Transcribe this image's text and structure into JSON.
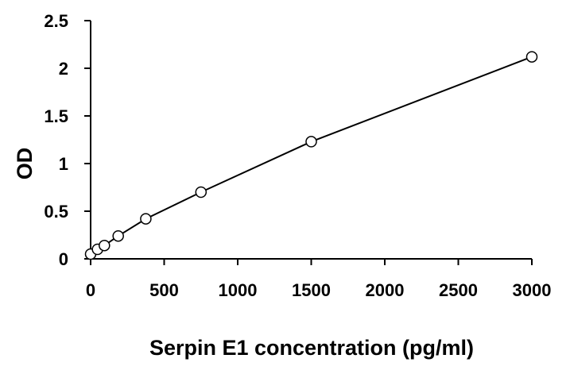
{
  "chart_data": {
    "type": "scatter",
    "title": "",
    "xlabel": "Serpin E1 concentration (pg/ml)",
    "ylabel": "OD",
    "xlim": [
      0,
      3000
    ],
    "ylim": [
      0,
      2.5
    ],
    "x_ticks": [
      "0",
      "500",
      "1000",
      "1500",
      "2000",
      "2500",
      "3000"
    ],
    "y_ticks": [
      "0",
      "0.5",
      "1",
      "1.5",
      "2",
      "2.5"
    ],
    "grid": false,
    "legend": "none",
    "marker": "open-circle",
    "line": "smooth-through-points",
    "colors": {
      "line": "#000000",
      "marker_fill": "#ffffff",
      "marker_stroke": "#000000"
    },
    "series": [
      {
        "x": [
          0,
          46.9,
          93.75,
          187.5,
          375,
          750,
          1500,
          3000
        ],
        "y": [
          0.05,
          0.1,
          0.14,
          0.24,
          0.42,
          0.7,
          1.23,
          2.12
        ]
      }
    ]
  }
}
